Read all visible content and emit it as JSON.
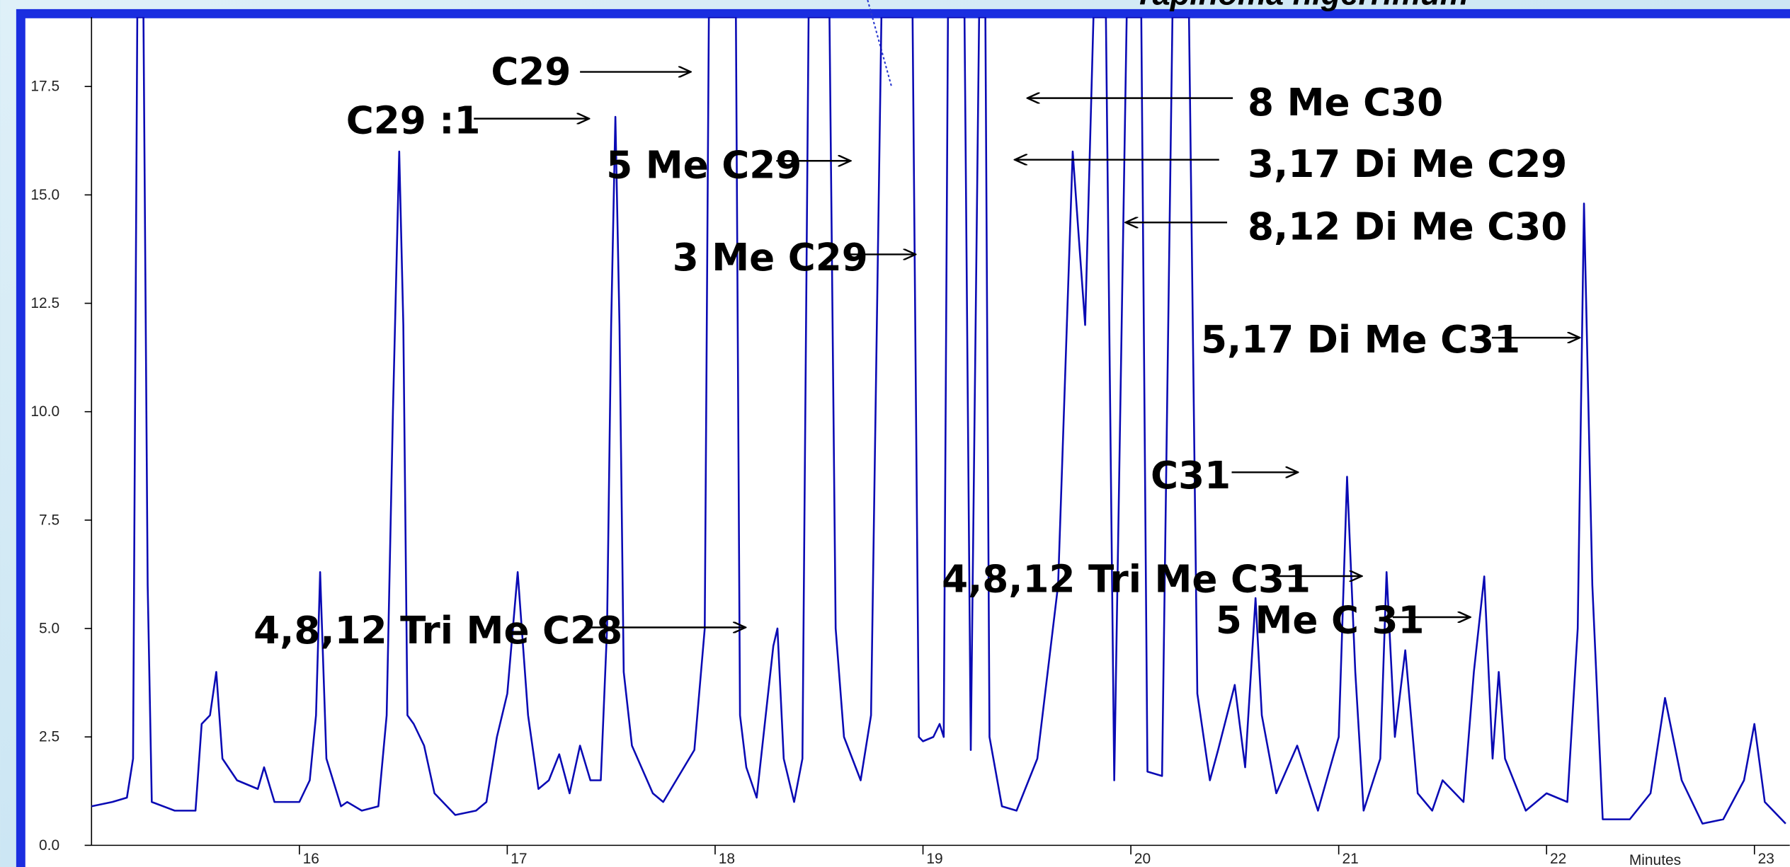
{
  "chart_data": {
    "type": "line",
    "title": "Tapinoma nigerrimum",
    "x_label": "Minutes",
    "color": "#0a0ab4",
    "xlim": [
      15,
      23.17
    ],
    "ylim": [
      0,
      19.1
    ],
    "xticks": [
      16,
      17,
      18,
      19,
      20,
      21,
      22,
      23
    ],
    "yticks": [
      {
        "value": 0,
        "label": "0.0"
      },
      2.5,
      {
        "value": 5,
        "label": "5.0"
      },
      7.5,
      {
        "value": 10,
        "label": "10.0"
      },
      12.5,
      {
        "value": 15,
        "label": "15.0"
      },
      17.5
    ],
    "annotations": [
      "C29",
      "C29 :1",
      "5 Me C29",
      "3 Me C29",
      "8 Me C30",
      "3,17 Di Me C29",
      "8,12 Di Me C30",
      "5,17 Di Me C31",
      "C31",
      "4,8,12 Tri Me C31",
      "5 Me C 31",
      "4,8,12 Tri Me C28"
    ],
    "x": [
      15.0,
      15.1,
      15.17,
      15.2,
      15.22,
      15.25,
      15.27,
      15.29,
      15.4,
      15.5,
      15.53,
      15.57,
      15.6,
      15.63,
      15.7,
      15.8,
      15.83,
      15.88,
      16.0,
      16.05,
      16.08,
      16.1,
      16.13,
      16.2,
      16.23,
      16.3,
      16.38,
      16.42,
      16.45,
      16.48,
      16.5,
      16.52,
      16.55,
      16.6,
      16.65,
      16.75,
      16.85,
      16.9,
      16.95,
      17.0,
      17.05,
      17.1,
      17.15,
      17.2,
      17.25,
      17.3,
      17.35,
      17.4,
      17.45,
      17.48,
      17.5,
      17.52,
      17.54,
      17.56,
      17.6,
      17.7,
      17.75,
      17.85,
      17.9,
      17.95,
      17.97,
      18.1,
      18.12,
      18.15,
      18.2,
      18.28,
      18.3,
      18.33,
      18.38,
      18.42,
      18.45,
      18.55,
      18.58,
      18.62,
      18.7,
      18.75,
      18.8,
      18.95,
      18.98,
      19.0,
      19.05,
      19.08,
      19.1,
      19.12,
      19.2,
      19.23,
      19.27,
      19.3,
      19.32,
      19.38,
      19.45,
      19.55,
      19.65,
      19.72,
      19.75,
      19.78,
      19.82,
      19.88,
      19.92,
      19.98,
      20.05,
      20.08,
      20.15,
      20.2,
      20.28,
      20.32,
      20.38,
      20.42,
      20.5,
      20.55,
      20.6,
      20.63,
      20.7,
      20.8,
      20.9,
      21.0,
      21.04,
      21.08,
      21.12,
      21.2,
      21.23,
      21.27,
      21.32,
      21.38,
      21.45,
      21.5,
      21.6,
      21.65,
      21.7,
      21.74,
      21.77,
      21.8,
      21.9,
      22.0,
      22.1,
      22.15,
      22.18,
      22.22,
      22.27,
      22.4,
      22.5,
      22.57,
      22.65,
      22.75,
      22.85,
      22.95,
      23.0,
      23.05,
      23.15
    ],
    "values": [
      0.9,
      1.0,
      1.1,
      2,
      19.1,
      19.1,
      6,
      1.0,
      0.8,
      0.8,
      2.8,
      3,
      4.0,
      2,
      1.5,
      1.3,
      1.8,
      1.0,
      1.0,
      1.5,
      3,
      6.3,
      2,
      0.9,
      1.0,
      0.8,
      0.9,
      3,
      10,
      16,
      12,
      3,
      2.8,
      2.3,
      1.2,
      0.7,
      0.8,
      1,
      2.5,
      3.5,
      6.3,
      3,
      1.3,
      1.5,
      2.1,
      1.2,
      2.3,
      1.5,
      1.5,
      5,
      12,
      16.8,
      12,
      4,
      2.3,
      1.2,
      1.0,
      1.8,
      2.2,
      5,
      19.1,
      19.1,
      3,
      1.8,
      1.1,
      4.6,
      5.0,
      2,
      1.0,
      2,
      19.1,
      19.1,
      5,
      2.5,
      1.5,
      3,
      19.1,
      19.1,
      2.5,
      2.4,
      2.5,
      2.8,
      2.5,
      19.1,
      19.1,
      2.2,
      19.1,
      19.1,
      2.5,
      0.9,
      0.8,
      2,
      6,
      16,
      14,
      12,
      19.1,
      19.1,
      1.5,
      19.1,
      19.1,
      1.7,
      1.6,
      19.1,
      19.1,
      3.5,
      1.5,
      2.2,
      3.7,
      1.8,
      5.7,
      3,
      1.2,
      2.3,
      0.8,
      2.5,
      8.5,
      4,
      0.8,
      2,
      6.3,
      2.5,
      4.5,
      1.2,
      0.8,
      1.5,
      1.0,
      4,
      6.2,
      2,
      4,
      2,
      0.8,
      1.2,
      1.0,
      5,
      14.8,
      6,
      0.6,
      0.6,
      1.2,
      3.4,
      1.5,
      0.5,
      0.6,
      1.5,
      2.8,
      1.0,
      0.5
    ]
  }
}
